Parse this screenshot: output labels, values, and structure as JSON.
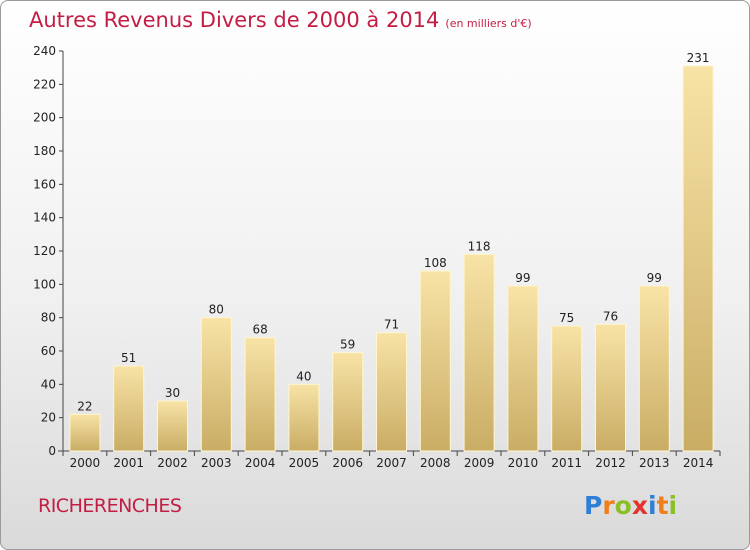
{
  "title": "Autres Revenus Divers de 2000 à 2014",
  "subtitle": "(en milliers d'€)",
  "commune": "RICHERENCHES",
  "logo_text": "Proxiti",
  "colors": {
    "title": "#c41d44",
    "bar_light": "#f8e3a6",
    "bar_dark": "#c9ad65"
  },
  "chart_data": {
    "type": "bar",
    "title": "Autres Revenus Divers de 2000 à 2014",
    "subtitle": "(en milliers d'€)",
    "categories": [
      "2000",
      "2001",
      "2002",
      "2003",
      "2004",
      "2005",
      "2006",
      "2007",
      "2008",
      "2009",
      "2010",
      "2011",
      "2012",
      "2013",
      "2014"
    ],
    "values": [
      22,
      51,
      30,
      80,
      68,
      40,
      59,
      71,
      108,
      118,
      99,
      75,
      76,
      99,
      231
    ],
    "ylim": [
      0,
      240
    ],
    "yticks": [
      0,
      20,
      40,
      60,
      80,
      100,
      120,
      140,
      160,
      180,
      200,
      220,
      240
    ],
    "grid": false,
    "data_labels": true
  }
}
